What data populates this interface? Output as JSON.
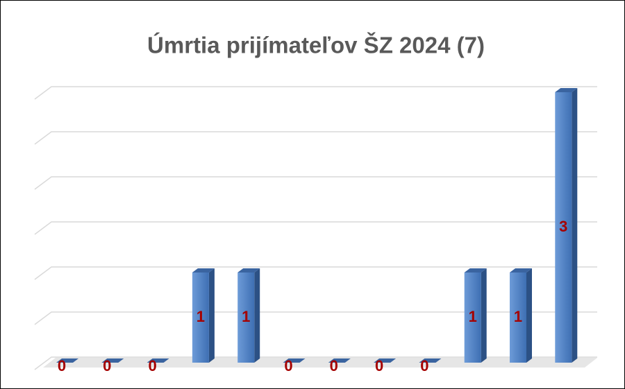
{
  "chart_data": {
    "type": "bar3d",
    "title": "Úmrtia prijímateľov ŠZ 2024 (7)",
    "categories": [
      null,
      null,
      null,
      null,
      null,
      null,
      null,
      null,
      null,
      null,
      null,
      null
    ],
    "values": [
      0,
      0,
      0,
      1,
      1,
      0,
      0,
      0,
      0,
      1,
      1,
      3
    ],
    "color": "#4f81bd",
    "label_color": "#a50000",
    "ylim": [
      0,
      3
    ],
    "yticks": [
      0,
      0.5,
      1,
      1.5,
      2,
      2.5,
      3
    ],
    "grid": true
  }
}
